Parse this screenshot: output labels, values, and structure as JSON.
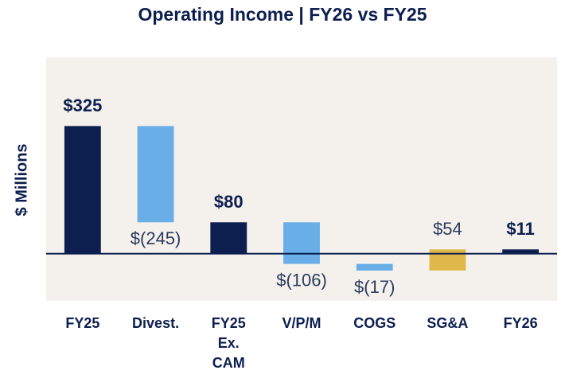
{
  "chart_data": {
    "type": "waterfall",
    "title": "Operating Income | FY26 vs FY25",
    "y_label": "$ Millions",
    "categories": [
      "FY25",
      "Divest.",
      "FY25 Ex. CAM",
      "V/P/M",
      "COGS",
      "SG&A",
      "FY26"
    ],
    "values": [
      325,
      -245,
      80,
      -106,
      -17,
      54,
      11
    ],
    "value_labels": [
      "$325",
      "$(245)",
      "$80",
      "$(106)",
      "$(17)",
      "$54",
      "$11"
    ],
    "is_total": [
      true,
      false,
      true,
      false,
      false,
      false,
      true
    ],
    "colors": {
      "total": "#0d1f4f",
      "decrease": "#6aaee8",
      "increase": "#e0b84a"
    },
    "ylim": [
      -120,
      500
    ]
  }
}
